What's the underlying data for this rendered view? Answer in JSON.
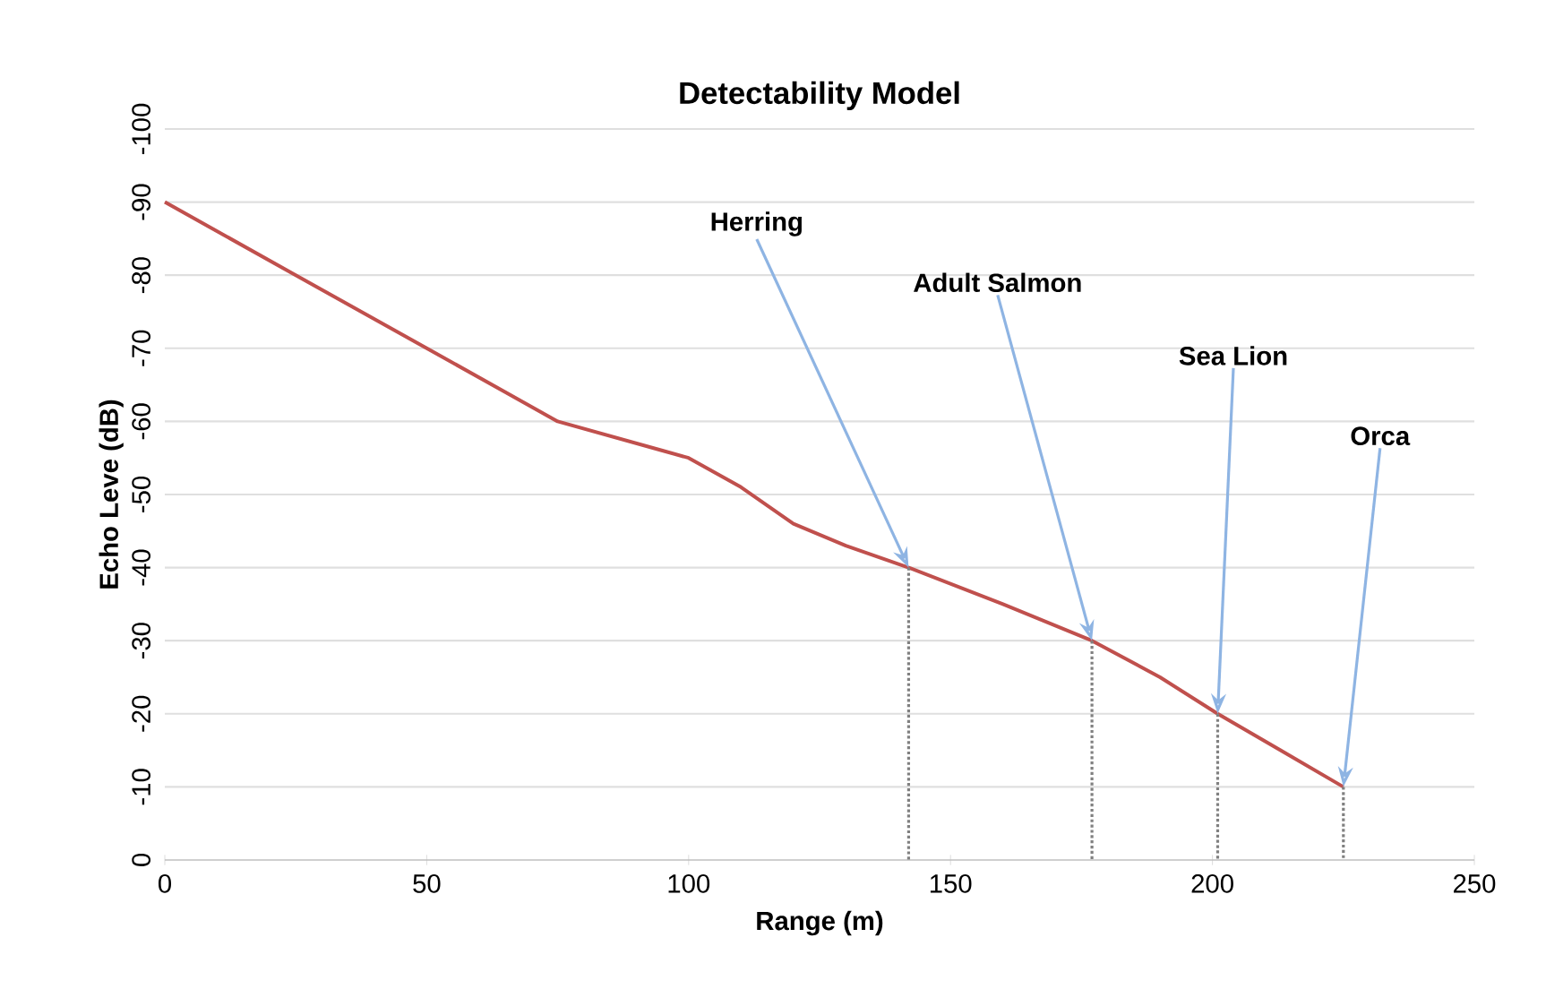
{
  "chart_data": {
    "type": "line",
    "title": "Detectability Model",
    "xlabel": "Range (m)",
    "ylabel": "Echo Leve (dB)",
    "x": [
      0,
      25,
      50,
      65,
      75,
      85,
      95,
      100,
      110,
      120,
      130,
      142,
      160,
      177,
      190,
      201,
      213,
      225
    ],
    "series": [
      {
        "color": "#c0504d",
        "values": [
          -90,
          -80,
          -70,
          -64,
          -60,
          -58,
          -56,
          -55,
          -51,
          -46,
          -43,
          -40,
          -35,
          -30,
          -25,
          -20,
          -15,
          -10
        ]
      },
      {
        "color": "#808080",
        "line_style": "dotted",
        "x": [
          142,
          142
        ],
        "values": [
          -40,
          0
        ]
      },
      {
        "color": "#808080",
        "line_style": "dotted",
        "x": [
          177,
          177
        ],
        "values": [
          -30,
          0
        ]
      },
      {
        "color": "#808080",
        "line_style": "dotted",
        "x": [
          201,
          201
        ],
        "values": [
          -20,
          0
        ]
      },
      {
        "color": "#808080",
        "line_style": "dotted",
        "x": [
          225,
          225
        ],
        "values": [
          -10,
          0
        ]
      }
    ],
    "xlim": [
      0,
      250
    ],
    "xticks": [
      0,
      50,
      100,
      150,
      200,
      250
    ],
    "ylim": [
      0,
      -100
    ],
    "yticks": [
      0,
      -10,
      -20,
      -30,
      -40,
      -50,
      -60,
      -70,
      -80,
      -90,
      -100
    ],
    "grid": "y",
    "marker": "none",
    "line_style": "solid",
    "annotations": [
      {
        "text": "Herring",
        "x": 142,
        "y": -40
      },
      {
        "text": "Adult Salmon",
        "x": 177,
        "y": -30
      },
      {
        "text": "Sea Lion",
        "x": 201,
        "y": -20
      },
      {
        "text": "Orca",
        "x": 225,
        "y": -10
      }
    ]
  }
}
